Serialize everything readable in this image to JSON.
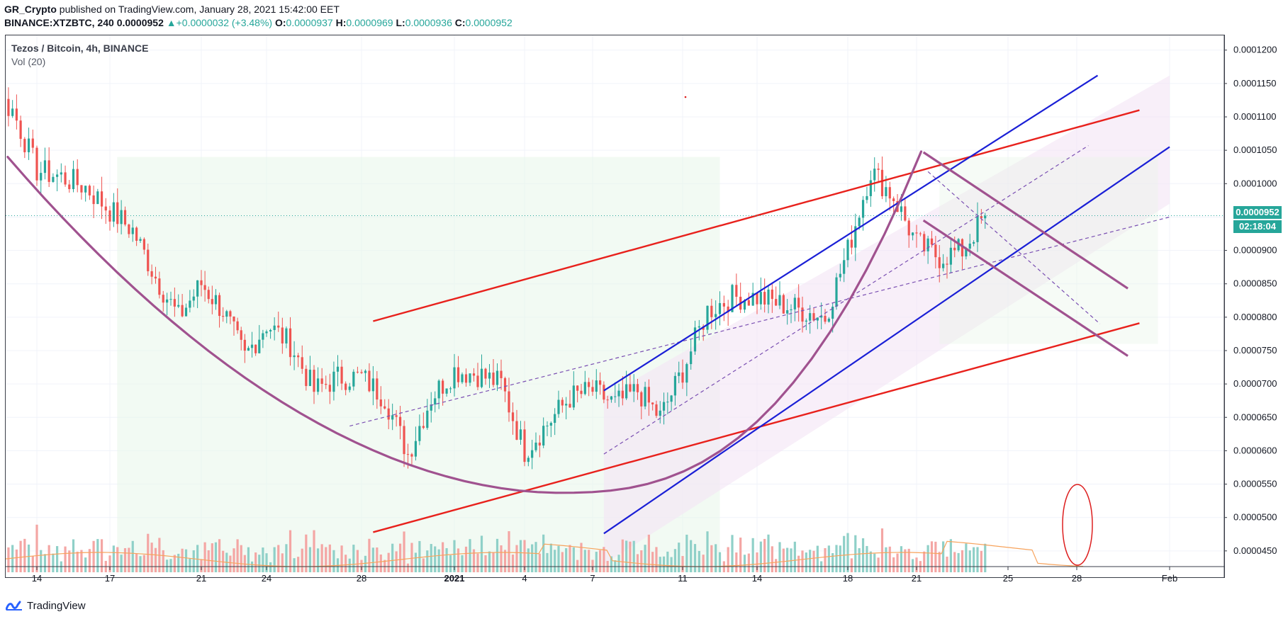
{
  "header": {
    "user": "GR_Crypto",
    "published_text": " published on TradingView.com, January 28, 2021 15:42:00 EET",
    "symbol": "BINANCE:XTZBTC, 240",
    "last_price": "0.0000952",
    "change_arrow": "▲",
    "change": "+0.0000032 (+3.48%)",
    "ohlc": [
      {
        "label": "O:",
        "value": "0.0000937"
      },
      {
        "label": "H:",
        "value": "0.0000969"
      },
      {
        "label": "L:",
        "value": "0.0000936"
      },
      {
        "label": "C:",
        "value": "0.0000952"
      }
    ]
  },
  "legend": {
    "title": "Tezos / Bitcoin, 4h, BINANCE",
    "volume_label": "Vol (20)"
  },
  "price_scale": {
    "current_price_label": "0.0000952",
    "countdown_label": "02:18:04"
  },
  "footer": {
    "brand": "TradingView"
  },
  "colors": {
    "up": "#26a69a",
    "down": "#ef5350",
    "volume_up": "#8fd0c8",
    "volume_down": "#f4a6a4",
    "volume_ma": "#f7a35c",
    "trend_red": "#e8211c",
    "channel_blue": "#1a1fd6",
    "cup_purple": "#a0528f",
    "dashed_purple": "#7a4fb2",
    "annotation_red": "#dd1f1f"
  },
  "chart_data": {
    "type": "candlestick",
    "title": "Tezos / Bitcoin, 4h, BINANCE",
    "x_ticks": [
      "14",
      "17",
      "21",
      "24",
      "28",
      "2021",
      "4",
      "7",
      "11",
      "14",
      "18",
      "21",
      "25",
      "28",
      "Feb"
    ],
    "y_ticks": [
      "0.0000450",
      "0.0000500",
      "0.0000550",
      "0.0000600",
      "0.0000650",
      "0.0000700",
      "0.0000750",
      "0.0000800",
      "0.0000850",
      "0.0000900",
      "0.0000950",
      "0.0001000",
      "0.0001050",
      "0.0001100",
      "0.0001150",
      "0.0001200"
    ],
    "ylim": [
      4.18e-05,
      0.0001222
    ],
    "price_path": [
      [
        "14",
        0.000115
      ],
      [
        "15",
        0.000116
      ],
      [
        "16",
        0.000114
      ],
      [
        "17",
        0.000111
      ],
      [
        "18",
        0.000102
      ],
      [
        "19",
        0.000101
      ],
      [
        "20",
        9.95e-05
      ],
      [
        "21",
        9.6e-05
      ],
      [
        "22",
        9.3e-05
      ],
      [
        "23",
        8.6e-05
      ],
      [
        "24",
        8e-05
      ],
      [
        "25",
        8.5e-05
      ],
      [
        "26",
        8.1e-05
      ],
      [
        "27",
        7.4e-05
      ],
      [
        "28",
        7.9e-05
      ],
      [
        "29",
        7.6e-05
      ],
      [
        "30",
        6.9e-05
      ],
      [
        "31",
        7.1e-05
      ],
      [
        "2021",
        7.1e-05
      ],
      [
        "2",
        6.8e-05
      ],
      [
        "3",
        5.95e-05
      ],
      [
        "4",
        6.8e-05
      ],
      [
        "5",
        7.2e-05
      ],
      [
        "6",
        7.15e-05
      ],
      [
        "7",
        7e-05
      ],
      [
        "8",
        6e-05
      ],
      [
        "9",
        6.4e-05
      ],
      [
        "10",
        6.8e-05
      ],
      [
        "11",
        6.9e-05
      ],
      [
        "12",
        6.7e-05
      ],
      [
        "13",
        6.9e-05
      ],
      [
        "14",
        6.5e-05
      ],
      [
        "15",
        7.2e-05
      ],
      [
        "16",
        8.1e-05
      ],
      [
        "17",
        8.3e-05
      ],
      [
        "18",
        8.3e-05
      ],
      [
        "19",
        8.2e-05
      ],
      [
        "20",
        8.1e-05
      ],
      [
        "21",
        8e-05
      ],
      [
        "22",
        9e-05
      ],
      [
        "23",
        0.000102
      ],
      [
        "24",
        9.8e-05
      ],
      [
        "25",
        9.1e-05
      ],
      [
        "26",
        8.9e-05
      ],
      [
        "27",
        9e-05
      ],
      [
        "28",
        9.52e-05
      ]
    ],
    "series": [
      {
        "name": "Vol (20)",
        "type": "volume"
      }
    ],
    "annotations": [
      {
        "type": "trendline",
        "color": "red",
        "points": [
          [
            "29 Dec",
            7.94e-05
          ],
          [
            "31 Jan",
            0.000111
          ]
        ]
      },
      {
        "type": "trendline",
        "color": "red",
        "points": [
          [
            "29 Dec",
            4.78e-05
          ],
          [
            "31 Jan",
            7.91e-05
          ]
        ]
      },
      {
        "type": "parallel_channel",
        "color": "blue",
        "upper": [
          [
            "8 Jan",
            6.9e-05
          ],
          [
            "29 Jan",
            0.0001162
          ]
        ],
        "lower": [
          [
            "8 Jan",
            4.76e-05
          ],
          [
            "1 Feb",
            0.0001055
          ]
        ]
      },
      {
        "type": "cup_arc",
        "color": "purple"
      },
      {
        "type": "descending_channel",
        "color": "purple"
      },
      {
        "type": "ellipse",
        "color": "red",
        "at": "28"
      }
    ],
    "grid": true,
    "legend_position": "top-left"
  }
}
